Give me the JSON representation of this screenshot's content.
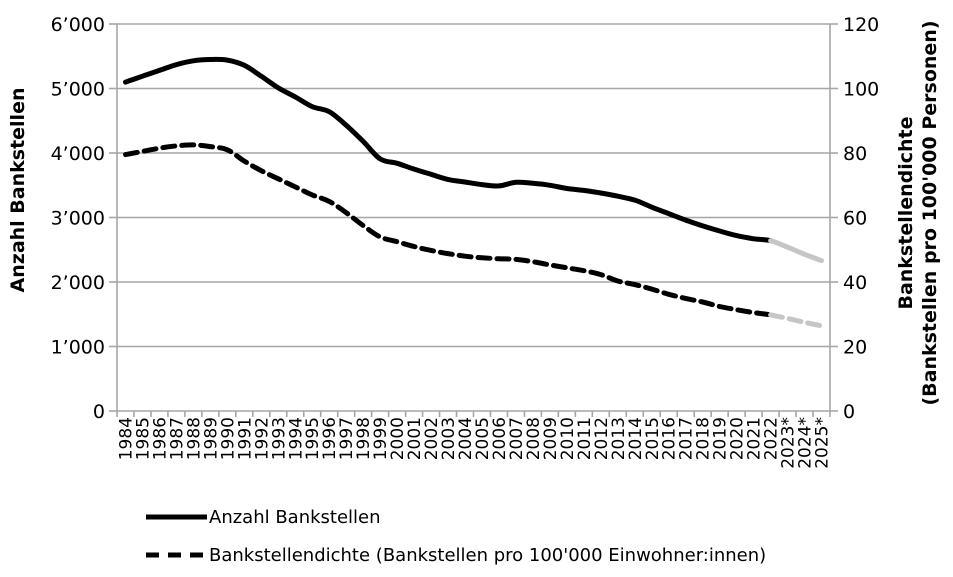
{
  "chart_data": {
    "type": "line",
    "title": "",
    "x_categories": [
      "1984",
      "1985",
      "1986",
      "1987",
      "1988",
      "1989",
      "1990",
      "1991",
      "1992",
      "1993",
      "1994",
      "1995",
      "1996",
      "1997",
      "1998",
      "1999",
      "2000",
      "2001",
      "2002",
      "2003",
      "2004",
      "2005",
      "2006",
      "2007",
      "2008",
      "2009",
      "2010",
      "2011",
      "2012",
      "2013",
      "2014",
      "2015",
      "2016",
      "2017",
      "2018",
      "2019",
      "2020",
      "2021",
      "2022",
      "2023*",
      "2024*",
      "2025*"
    ],
    "left_axis": {
      "title": "Anzahl Bankstellen",
      "min": 0,
      "max": 6000,
      "ticks": [
        "0",
        "1’000",
        "2’000",
        "3’000",
        "4’000",
        "5’000",
        "6’000"
      ]
    },
    "right_axis": {
      "title_line1": "Bankstellendichte",
      "title_line2": "(Bankstellen pro 100'000 Personen)",
      "min": 0,
      "max": 120,
      "ticks": [
        "0",
        "20",
        "40",
        "60",
        "80",
        "100",
        "120"
      ]
    },
    "grid": true,
    "legend_position": "bottom",
    "colors": {
      "actual": "#000000",
      "forecast": "#c6c6c6",
      "grid": "#a6a6a6"
    },
    "forecast_note": "Years 2023*, 2024*, 2025* are drawn in grey (projection)",
    "series": [
      {
        "name": "Anzahl Bankstellen",
        "axis": "left",
        "style": "solid",
        "forecast_start_index": 38,
        "values": [
          5100,
          5190,
          5280,
          5370,
          5430,
          5450,
          5440,
          5360,
          5190,
          5010,
          4870,
          4720,
          4640,
          4430,
          4180,
          3910,
          3840,
          3750,
          3670,
          3590,
          3550,
          3510,
          3490,
          3545,
          3530,
          3500,
          3450,
          3420,
          3380,
          3330,
          3270,
          3160,
          3060,
          2960,
          2870,
          2790,
          2720,
          2670,
          2640,
          2540,
          2430,
          2330
        ]
      },
      {
        "name": "Bankstellendichte (Bankstellen pro 100'000 Einwohner:innen)",
        "axis": "right",
        "style": "dashed",
        "forecast_start_index": 38,
        "values": [
          79.5,
          80.5,
          81.5,
          82.2,
          82.5,
          82.0,
          81.0,
          77.5,
          74.5,
          72.0,
          69.5,
          67.0,
          65.0,
          61.5,
          57.5,
          54.0,
          52.5,
          51.0,
          49.8,
          48.8,
          48.0,
          47.5,
          47.2,
          47.0,
          46.3,
          45.3,
          44.4,
          43.5,
          42.3,
          40.3,
          39.2,
          37.8,
          36.2,
          34.9,
          33.8,
          32.4,
          31.4,
          30.5,
          29.8,
          28.7,
          27.5,
          26.4
        ]
      }
    ]
  }
}
